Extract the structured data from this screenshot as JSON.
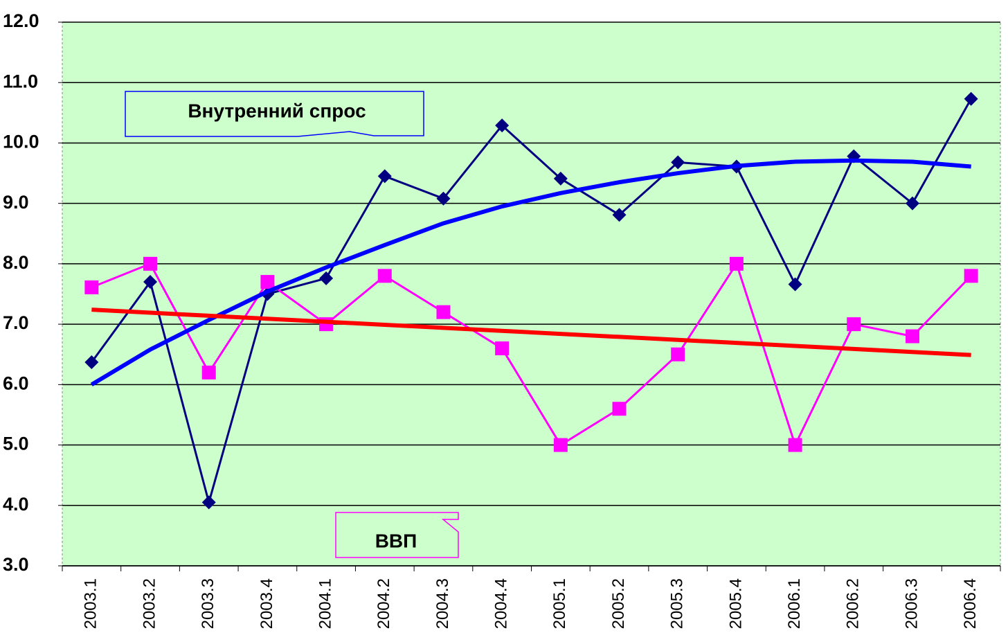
{
  "chart_data": {
    "type": "line",
    "categories": [
      "2003.1",
      "2003.2",
      "2003.3",
      "2003.4",
      "2004.1",
      "2004.2",
      "2004.3",
      "2004.4",
      "2005.1",
      "2005.2",
      "2005.3",
      "2005.4",
      "2006.1",
      "2006.2",
      "2006.3",
      "2006.4"
    ],
    "series": [
      {
        "name": "Внутренний спрос",
        "color": "#000080",
        "marker": "diamond",
        "values": [
          6.37,
          7.7,
          4.05,
          7.5,
          7.76,
          9.45,
          9.08,
          10.29,
          9.41,
          8.81,
          9.68,
          9.61,
          7.66,
          9.78,
          9.0,
          10.73
        ]
      },
      {
        "name": "ВВП",
        "color": "#ff00ff",
        "marker": "square",
        "values": [
          7.61,
          8.0,
          6.2,
          7.7,
          7.0,
          7.8,
          7.2,
          6.6,
          5.0,
          5.6,
          6.5,
          8.0,
          5.0,
          7.0,
          6.8,
          7.8
        ]
      },
      {
        "color": "#0000ff",
        "marker": "none",
        "values": [
          6.0,
          6.58,
          7.07,
          7.54,
          7.94,
          8.31,
          8.67,
          8.95,
          9.17,
          9.35,
          9.5,
          9.62,
          9.69,
          9.71,
          9.69,
          9.61
        ]
      },
      {
        "color": "#ff0000",
        "marker": "none",
        "values": [
          7.24,
          7.19,
          7.14,
          7.09,
          7.04,
          6.99,
          6.94,
          6.89,
          6.84,
          6.79,
          6.74,
          6.69,
          6.64,
          6.59,
          6.54,
          6.49
        ]
      }
    ],
    "annotations": [
      "Внутренний спрос",
      "ВВП"
    ],
    "ylim": [
      3,
      12
    ],
    "yticks": [
      {
        "value": 3,
        "label": "3.0"
      },
      {
        "value": 4,
        "label": "4.0"
      },
      {
        "value": 5,
        "label": "5.0"
      },
      {
        "value": 6,
        "label": "6.0"
      },
      {
        "value": 7,
        "label": "7.0"
      },
      {
        "value": 8,
        "label": "8.0"
      },
      {
        "value": 9,
        "label": "9.0"
      },
      {
        "value": 10,
        "label": "10.0"
      },
      {
        "value": 11,
        "label": "11.0"
      },
      {
        "value": 12,
        "label": "12.0"
      }
    ],
    "grid": true,
    "background": "#ccffcc"
  }
}
